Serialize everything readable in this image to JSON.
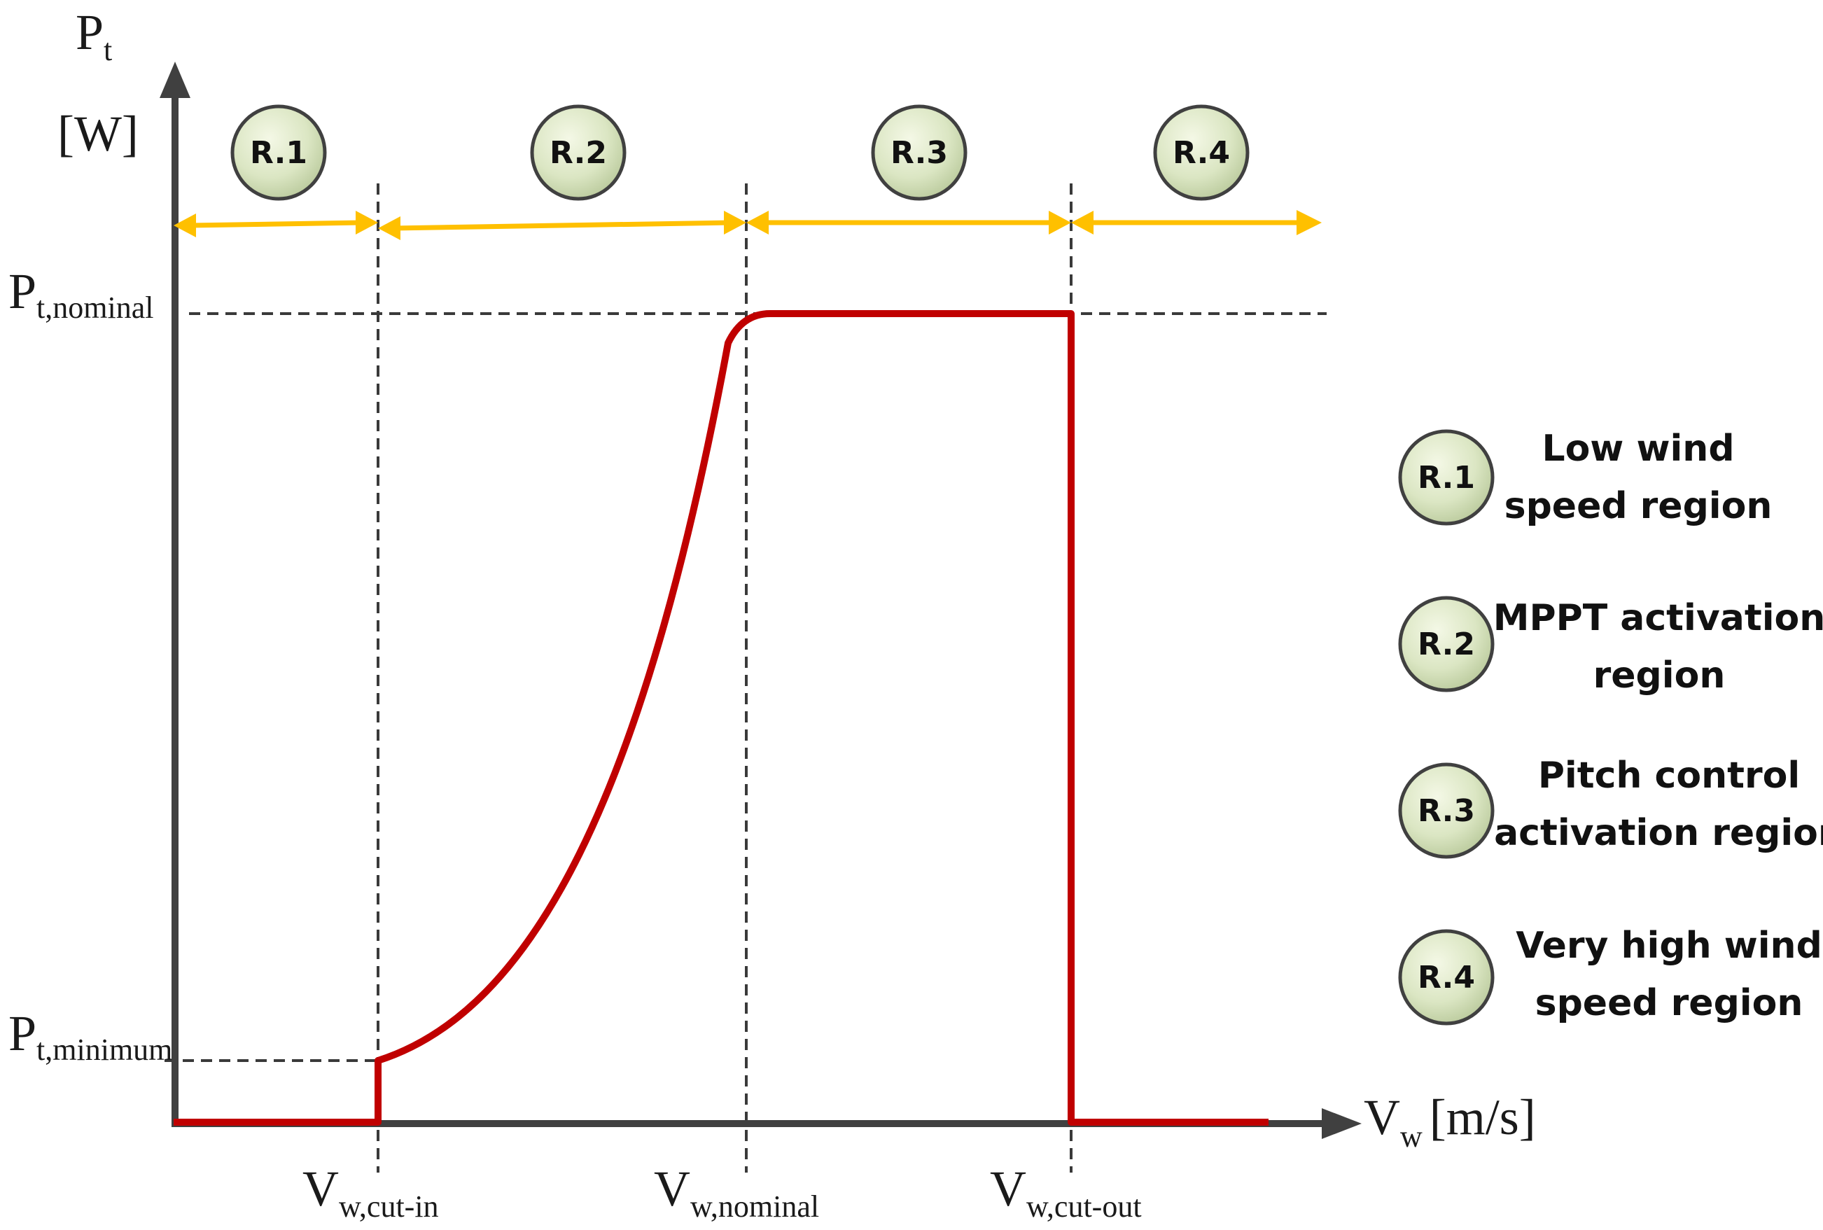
{
  "axes": {
    "y_label_main": "P",
    "y_label_sub": "t",
    "y_unit": "[W]",
    "x_label_main": "V",
    "x_label_sub": "w",
    "x_unit": "[m/s]"
  },
  "levels": {
    "nominal_main": "P",
    "nominal_sub": "t,nominal",
    "minimum_main": "P",
    "minimum_sub": "t,minimum"
  },
  "speeds": {
    "cut_in_main": "V",
    "cut_in_sub": "w,cut-in",
    "nominal_main": "V",
    "nominal_sub": "w,nominal",
    "cut_out_main": "V",
    "cut_out_sub": "w,cut-out"
  },
  "regions": [
    {
      "id": "R.1"
    },
    {
      "id": "R.2"
    },
    {
      "id": "R.3"
    },
    {
      "id": "R.4"
    }
  ],
  "legend": [
    {
      "id": "R.1",
      "line1": "Low wind",
      "line2": "speed region"
    },
    {
      "id": "R.2",
      "line1": "MPPT activation",
      "line2": "region"
    },
    {
      "id": "R.3",
      "line1": "Pitch control",
      "line2": "activation region"
    },
    {
      "id": "R.4",
      "line1": "Very high wind",
      "line2": "speed region"
    }
  ],
  "colors": {
    "curve": "#c00000",
    "axis": "#404040",
    "range_arrow": "#ffc000",
    "badge_fill_light": "#f4f8e6",
    "badge_fill_dark": "#b9c99b"
  }
}
